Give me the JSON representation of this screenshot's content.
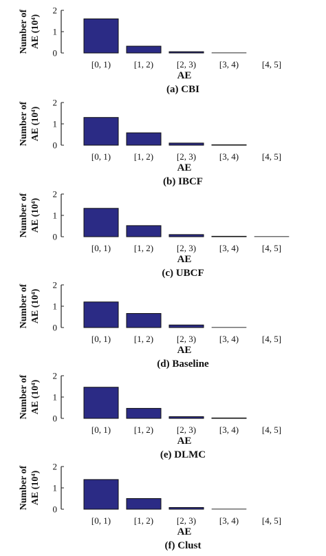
{
  "chart_data": [
    {
      "type": "bar",
      "categories": [
        "[0, 1)",
        "[1, 2)",
        "[2, 3)",
        "[3, 4)",
        "[4, 5]"
      ],
      "values": [
        1.6,
        0.32,
        0.06,
        0.01,
        0.0
      ],
      "xlabel": "AE",
      "ylabel": "Number of AE (10⁴)",
      "ylim": [
        0,
        2
      ],
      "yticks": [
        0,
        1,
        2
      ],
      "caption": "(a) CBI",
      "color": "#2b2b85"
    },
    {
      "type": "bar",
      "categories": [
        "[0, 1)",
        "[1, 2)",
        "[2, 3)",
        "[3, 4)",
        "[4, 5]"
      ],
      "values": [
        1.3,
        0.58,
        0.1,
        0.02,
        0.0
      ],
      "xlabel": "AE",
      "ylabel": "Number of AE (10⁴)",
      "ylim": [
        0,
        2
      ],
      "yticks": [
        0,
        1,
        2
      ],
      "caption": "(b) IBCF",
      "color": "#2b2b85"
    },
    {
      "type": "bar",
      "categories": [
        "[0, 1)",
        "[1, 2)",
        "[2, 3)",
        "[3, 4)",
        "[4, 5]"
      ],
      "values": [
        1.33,
        0.52,
        0.1,
        0.02,
        0.01
      ],
      "xlabel": "AE",
      "ylabel": "Number of AE (10⁴)",
      "ylim": [
        0,
        2
      ],
      "yticks": [
        0,
        1,
        2
      ],
      "caption": "(c) UBCF",
      "color": "#2b2b85"
    },
    {
      "type": "bar",
      "categories": [
        "[0, 1)",
        "[1, 2)",
        "[2, 3)",
        "[3, 4)",
        "[4, 5]"
      ],
      "values": [
        1.2,
        0.66,
        0.12,
        0.01,
        0.0
      ],
      "xlabel": "AE",
      "ylabel": "Number of AE (10⁴)",
      "ylim": [
        0,
        2
      ],
      "yticks": [
        0,
        1,
        2
      ],
      "caption": "(d) Baseline",
      "color": "#2b2b85"
    },
    {
      "type": "bar",
      "categories": [
        "[0, 1)",
        "[1, 2)",
        "[2, 3)",
        "[3, 4)",
        "[4, 5]"
      ],
      "values": [
        1.46,
        0.47,
        0.08,
        0.02,
        0.0
      ],
      "xlabel": "AE",
      "ylabel": "Number of AE (10⁴)",
      "ylim": [
        0,
        2
      ],
      "yticks": [
        0,
        1,
        2
      ],
      "caption": "(e) DLMC",
      "color": "#2b2b85"
    },
    {
      "type": "bar",
      "categories": [
        "[0, 1)",
        "[1, 2)",
        "[2, 3)",
        "[3, 4)",
        "[4, 5]"
      ],
      "values": [
        1.39,
        0.5,
        0.08,
        0.01,
        0.0
      ],
      "xlabel": "AE",
      "ylabel": "Number of AE (10⁴)",
      "ylim": [
        0,
        2
      ],
      "yticks": [
        0,
        1,
        2
      ],
      "caption": "(f) Clust",
      "color": "#2b2b85"
    }
  ]
}
